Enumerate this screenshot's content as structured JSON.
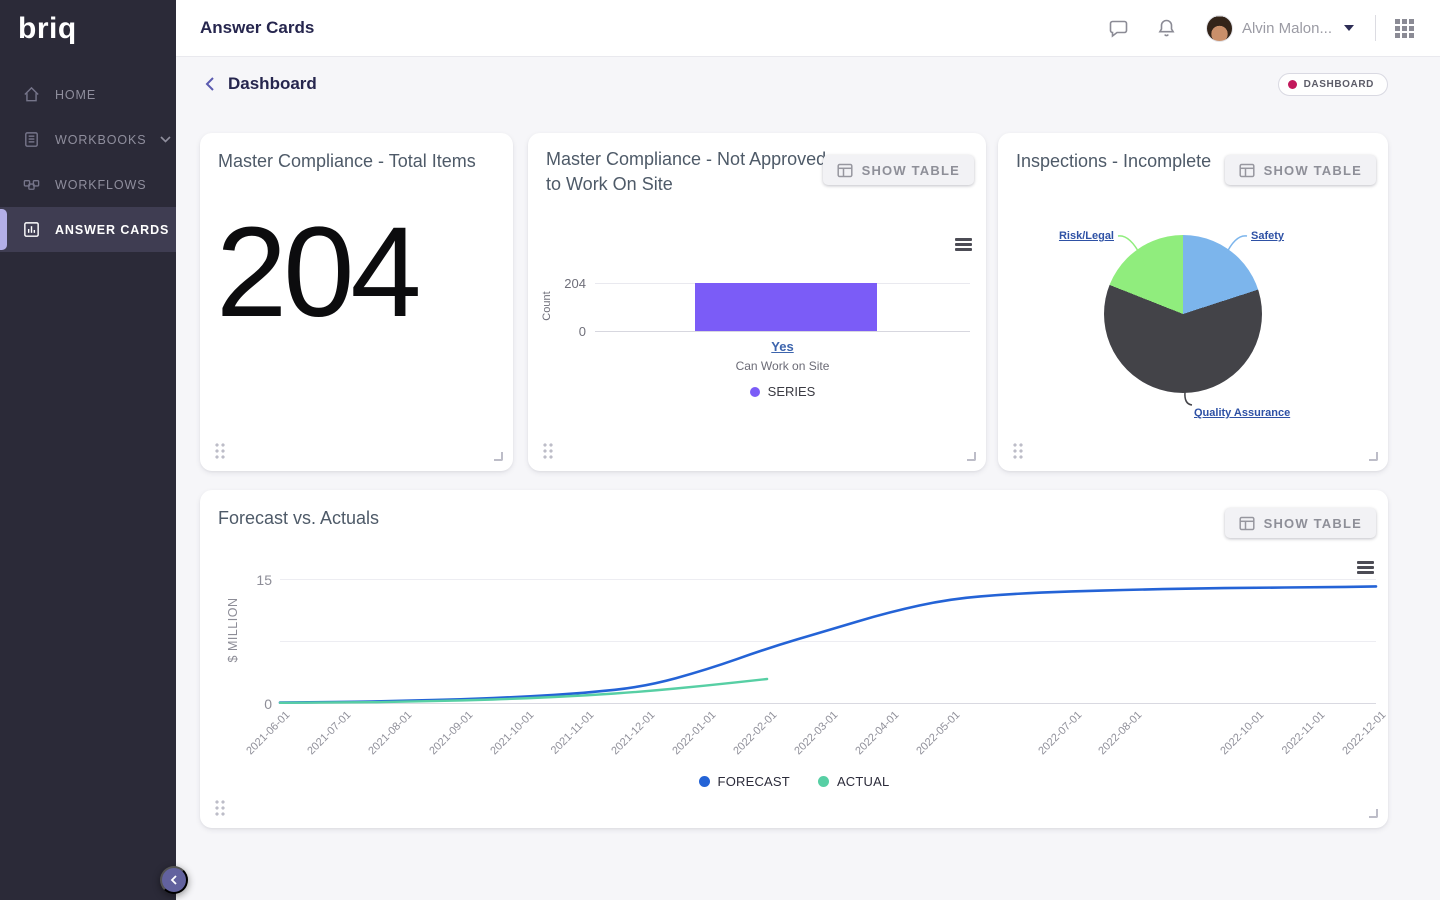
{
  "ui": {
    "show_table": "SHOW TABLE",
    "badge_dot_color": "#c2185b",
    "accent_purple": "#7b5cf7"
  },
  "sidebar": {
    "logo": "briq",
    "items": [
      {
        "label": "HOME"
      },
      {
        "label": "WORKBOOKS"
      },
      {
        "label": "WORKFLOWS"
      },
      {
        "label": "ANSWER CARDS"
      }
    ]
  },
  "topbar": {
    "title": "Answer Cards",
    "user_name": "Alvin Malon..."
  },
  "page_header": {
    "title": "Dashboard",
    "badge": "DASHBOARD"
  },
  "cards": {
    "total_items": {
      "title": "Master Compliance - Total Items",
      "value": "204"
    },
    "not_approved": {
      "title": "Master Compliance - Not Approved to Work On Site"
    },
    "inspections": {
      "title": "Inspections - Incomplete"
    },
    "forecast": {
      "title": "Forecast vs. Actuals"
    }
  },
  "chart_data": [
    {
      "type": "bar",
      "title": "Master Compliance - Not Approved to Work On Site",
      "categories": [
        "Yes"
      ],
      "values": [
        204
      ],
      "xlabel": "Can Work on Site",
      "ylabel": "Count",
      "yticks": [
        0,
        204
      ],
      "ymax": 204,
      "legend": [
        "SERIES"
      ],
      "colors": [
        "#7b5cf7"
      ]
    },
    {
      "type": "pie",
      "title": "Inspections - Incomplete",
      "labels": [
        "Safety",
        "Quality Assurance",
        "Risk/Legal"
      ],
      "values_pct": [
        20,
        61,
        19
      ],
      "colors": [
        "#7cb5ec",
        "#434348",
        "#90ed7d"
      ],
      "label_color": "#2e51a5"
    },
    {
      "type": "line",
      "title": "Forecast vs. Actuals",
      "x": [
        "2021-06-01",
        "2021-07-01",
        "2021-08-01",
        "2021-09-01",
        "2021-10-01",
        "2021-11-01",
        "2021-12-01",
        "2022-01-01",
        "2022-02-01",
        "2022-03-01",
        "2022-04-01",
        "2022-05-01",
        "2022-06-01",
        "2022-07-01",
        "2022-08-01",
        "2022-09-01",
        "2022-10-01",
        "2022-11-01",
        "2022-12-01"
      ],
      "x_tick_labels": [
        "2021-06-01",
        "2021-07-01",
        "2021-08-01",
        "2021-09-01",
        "2021-10-01",
        "2021-11-01",
        "2021-12-01",
        "2022-01-01",
        "2022-02-01",
        "2022-03-01",
        "2022-04-01",
        "2022-05-01",
        "2022-07-01",
        "2022-08-01",
        "2022-10-01",
        "2022-11-01",
        "2022-12-01"
      ],
      "series": [
        {
          "name": "FORECAST",
          "color": "#2463d6",
          "values": [
            0.05,
            0.1,
            0.25,
            0.45,
            0.75,
            1.2,
            2.0,
            4.0,
            6.6,
            8.8,
            11.0,
            12.6,
            13.2,
            13.5,
            13.7,
            13.85,
            13.95,
            14.0,
            14.1
          ]
        },
        {
          "name": "ACTUAL",
          "color": "#57cfa4",
          "values": [
            0.02,
            0.05,
            0.15,
            0.3,
            0.55,
            0.9,
            1.4,
            2.1,
            2.9
          ]
        }
      ],
      "ylabel": "$ MILLION",
      "yticks": [
        0,
        15
      ],
      "ylim": [
        0,
        17.4
      ],
      "grid": "horizontal",
      "legend_position": "bottom"
    }
  ]
}
